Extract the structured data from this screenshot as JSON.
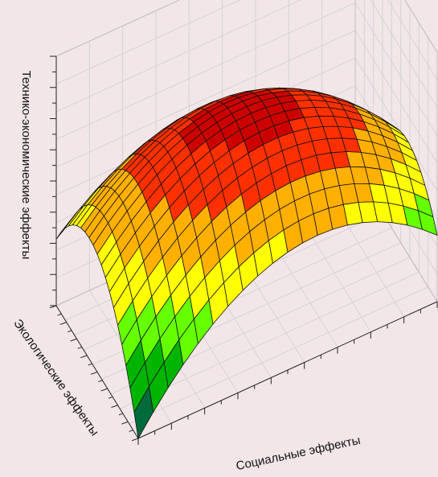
{
  "chart_data": {
    "type": "surface",
    "title": "",
    "xlabel": "Социальные эффекты",
    "ylabel": "Экологические эффекты",
    "zlabel": "Технико-экономические эффекты",
    "x_tick_labels": [],
    "y_tick_labels": [],
    "z_tick_labels": [],
    "grid": true,
    "colormap": [
      "#006b3c",
      "#00b400",
      "#66ff00",
      "#ffff00",
      "#ffb000",
      "#ff3000",
      "#cc0000",
      "#8b0000"
    ],
    "surface": {
      "x_range": [
        0,
        1
      ],
      "y_range": [
        0,
        1
      ],
      "resolution": [
        20,
        20
      ],
      "z_min": 0,
      "z_max": 1
    }
  }
}
